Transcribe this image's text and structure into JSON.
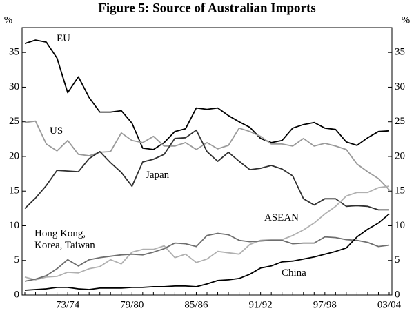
{
  "chart_data": {
    "type": "line",
    "title": "Figure 5: Source of Australian Imports",
    "y_label": "%",
    "categories": [
      null,
      null,
      null,
      null,
      "73/74",
      null,
      null,
      null,
      null,
      null,
      "79/80",
      null,
      null,
      null,
      null,
      null,
      "85/86",
      null,
      null,
      null,
      null,
      null,
      "91/92",
      null,
      null,
      null,
      null,
      null,
      "97/98",
      null,
      null,
      null,
      null,
      null,
      "03/04"
    ],
    "series": [
      {
        "name": "EU",
        "color": "#000000",
        "values": [
          36.3,
          36.8,
          36.5,
          34.2,
          29.2,
          31.5,
          28.5,
          26.4,
          26.4,
          26.6,
          24.8,
          21.2,
          21.0,
          22.0,
          23.6,
          24.0,
          27.0,
          26.8,
          27.0,
          25.9,
          25.0,
          24.2,
          22.6,
          22.0,
          22.3,
          24.1,
          24.6,
          24.9,
          24.1,
          23.9,
          22.1,
          21.6,
          22.7,
          23.6,
          23.7
        ]
      },
      {
        "name": "US",
        "color": "#9a9a9a",
        "values": [
          24.9,
          25.1,
          21.8,
          20.8,
          22.3,
          20.3,
          20.1,
          20.6,
          20.7,
          23.4,
          22.3,
          22.0,
          22.9,
          21.5,
          21.5,
          22.0,
          21.0,
          22.0,
          21.1,
          21.6,
          24.1,
          23.6,
          22.9,
          21.8,
          21.8,
          21.5,
          22.6,
          21.5,
          21.9,
          21.5,
          21.0,
          18.9,
          17.8,
          16.8,
          15.2
        ]
      },
      {
        "name": "Japan",
        "color": "#303030",
        "values": [
          12.5,
          14.0,
          15.8,
          18.0,
          17.9,
          17.8,
          19.7,
          20.7,
          19.1,
          17.7,
          15.7,
          19.2,
          19.6,
          20.3,
          22.6,
          22.7,
          23.8,
          20.7,
          19.3,
          20.6,
          19.3,
          18.1,
          18.3,
          18.7,
          18.2,
          17.2,
          13.9,
          13.0,
          13.9,
          13.9,
          12.8,
          12.9,
          12.8,
          12.3,
          12.3
        ]
      },
      {
        "name": "ASEAN",
        "color": "#b0b0b0",
        "values": [
          2.6,
          2.2,
          2.6,
          2.7,
          3.3,
          3.2,
          3.8,
          4.1,
          5.1,
          4.5,
          6.2,
          6.6,
          6.6,
          7.1,
          5.4,
          5.9,
          4.7,
          5.2,
          6.3,
          6.1,
          5.9,
          7.3,
          7.9,
          8.0,
          8.0,
          8.6,
          9.4,
          10.4,
          11.7,
          12.8,
          14.3,
          14.8,
          14.8,
          15.5,
          15.7
        ]
      },
      {
        "name": "Hong Kong, Korea, Taiwan",
        "color": "#6e6e6e",
        "values": [
          2.0,
          2.3,
          2.8,
          3.8,
          5.1,
          4.2,
          5.1,
          5.4,
          5.6,
          5.8,
          5.9,
          5.8,
          6.2,
          6.7,
          7.5,
          7.4,
          7.0,
          8.6,
          8.9,
          8.7,
          7.9,
          7.7,
          7.8,
          7.9,
          7.9,
          7.4,
          7.5,
          7.5,
          8.4,
          8.3,
          8.0,
          7.9,
          7.6,
          7.0,
          7.2
        ]
      },
      {
        "name": "China",
        "color": "#000000",
        "values": [
          0.7,
          0.8,
          0.9,
          1.1,
          1.1,
          0.9,
          0.8,
          1.0,
          1.0,
          1.0,
          1.1,
          1.1,
          1.2,
          1.2,
          1.3,
          1.3,
          1.2,
          1.6,
          2.1,
          2.2,
          2.4,
          3.0,
          3.9,
          4.2,
          4.8,
          4.9,
          5.2,
          5.5,
          5.9,
          6.3,
          6.8,
          8.4,
          9.5,
          10.4,
          11.7
        ]
      }
    ],
    "ylim": [
      0,
      38.6
    ],
    "yticks": [
      0,
      5,
      10,
      15,
      20,
      25,
      30,
      35
    ]
  }
}
